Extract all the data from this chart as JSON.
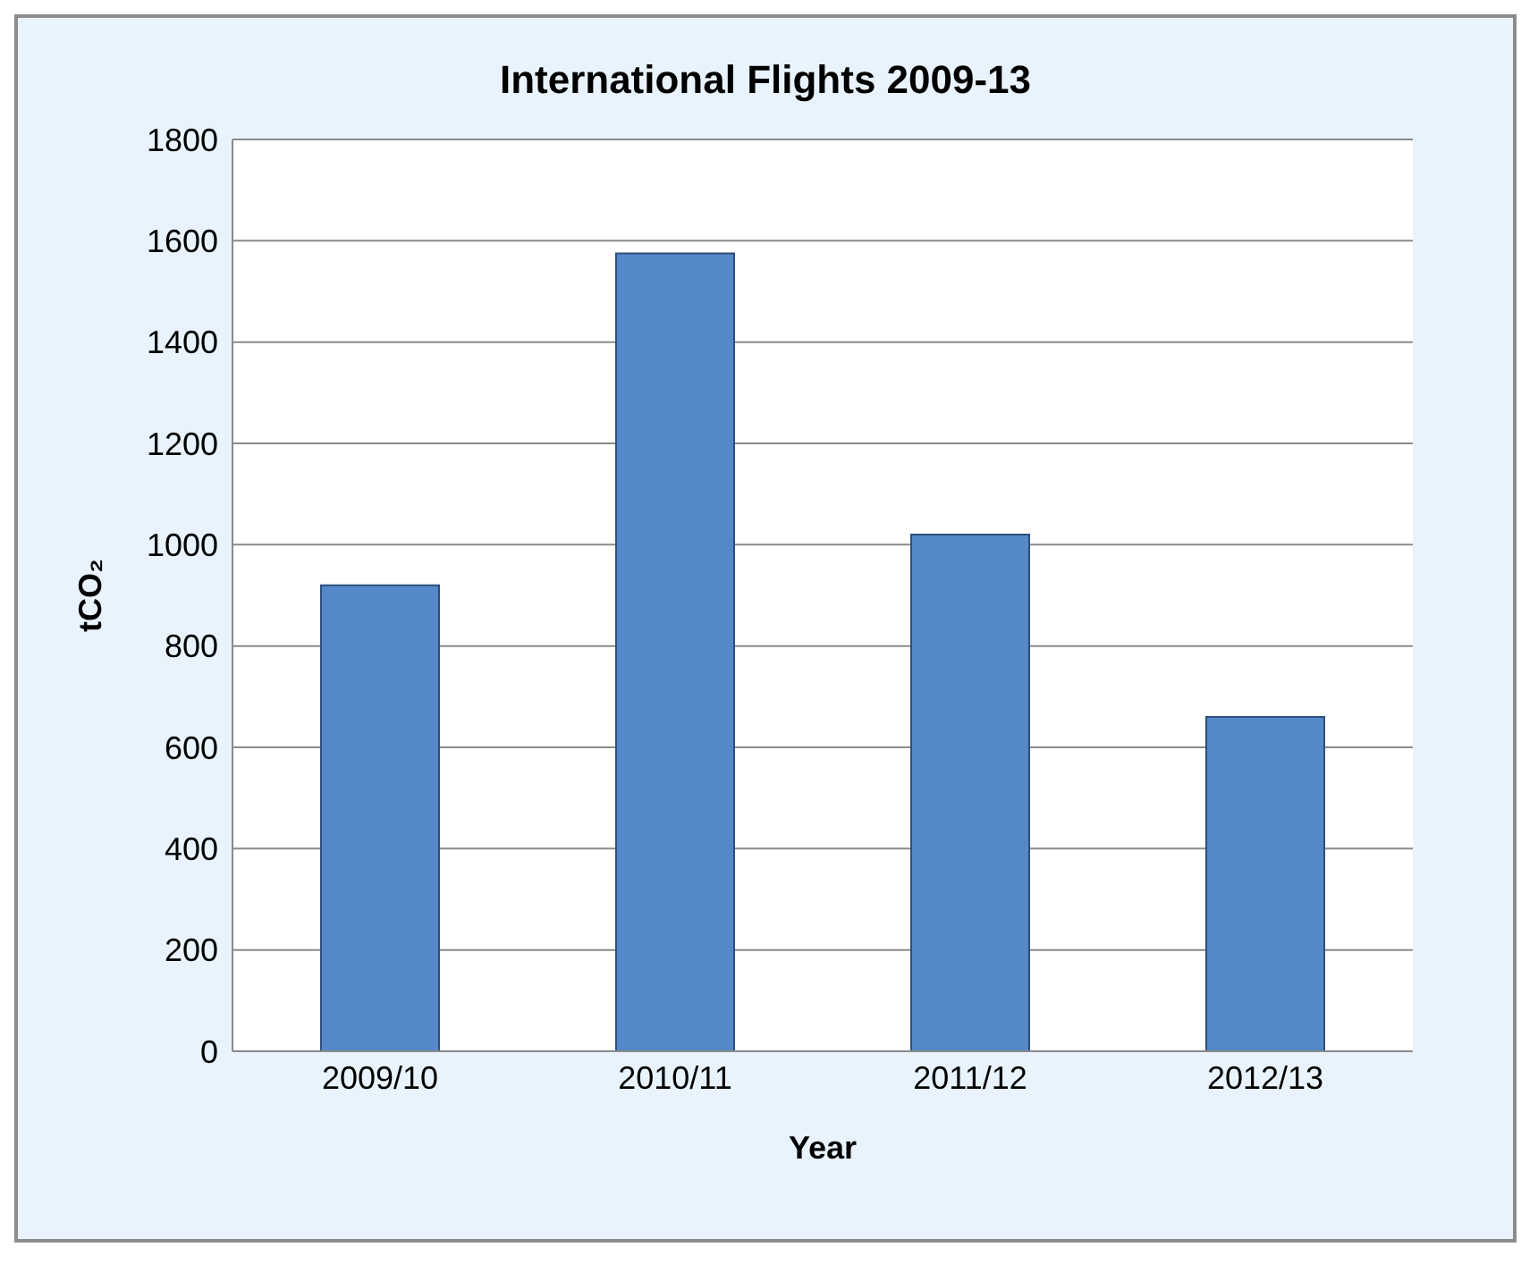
{
  "chart_data": {
    "type": "bar",
    "title": "International Flights 2009-13",
    "xlabel": "Year",
    "ylabel": "tCO₂",
    "categories": [
      "2009/10",
      "2010/11",
      "2011/12",
      "2012/13"
    ],
    "values": [
      920,
      1575,
      1020,
      660
    ],
    "color": "#5588c8",
    "ylim": [
      0,
      1800
    ],
    "yticks": [
      0,
      200,
      400,
      600,
      800,
      1000,
      1200,
      1400,
      1600,
      1800
    ],
    "grid": "y"
  }
}
